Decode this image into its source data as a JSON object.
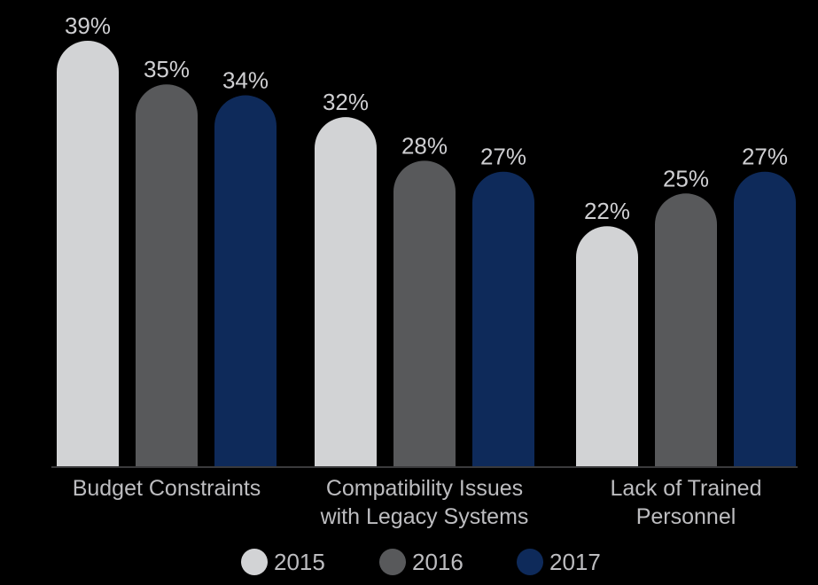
{
  "chart_data": {
    "type": "bar",
    "categories": [
      [
        "Budget Constraints"
      ],
      [
        "Compatibility Issues",
        "with Legacy Systems"
      ],
      [
        "Lack of Trained",
        "Personnel"
      ]
    ],
    "series": [
      {
        "name": "2015",
        "color": "#d2d3d5",
        "values": [
          39,
          32,
          22
        ],
        "labels": [
          "39%",
          "32%",
          "22%"
        ]
      },
      {
        "name": "2016",
        "color": "#58595b",
        "values": [
          35,
          28,
          25
        ],
        "labels": [
          "35%",
          "28%",
          "25%"
        ]
      },
      {
        "name": "2017",
        "color": "#0e2a5a",
        "values": [
          34,
          27,
          27
        ],
        "labels": [
          "34%",
          "27%",
          "27%"
        ]
      }
    ],
    "value_unit": "%",
    "ylim": [
      0,
      39
    ],
    "grid": false,
    "legend_position": "bottom",
    "bar_style": "rounded-top"
  }
}
